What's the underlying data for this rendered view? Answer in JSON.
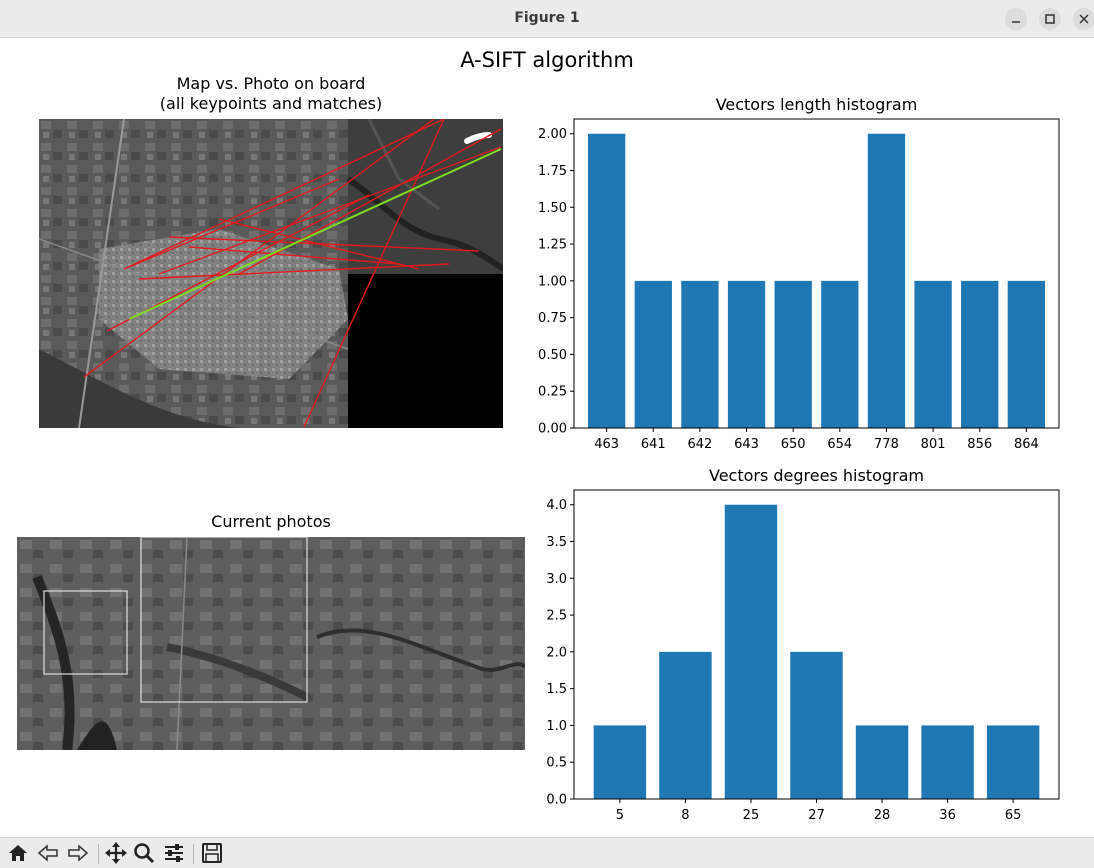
{
  "window": {
    "title": "Figure 1",
    "min_icon": "minimize-icon",
    "max_icon": "maximize-icon",
    "close_icon": "close-icon"
  },
  "figure": {
    "suptitle": "A-SIFT algorithm"
  },
  "panels": {
    "map_title_line1": "Map vs. Photo on board",
    "map_title_line2": "(all keypoints and matches)",
    "current_title": "Current photos"
  },
  "toolbar": {
    "icons": [
      "home-icon",
      "back-icon",
      "forward-icon",
      "pan-icon",
      "zoom-icon",
      "configure-subplots-icon",
      "save-icon"
    ]
  },
  "colors": {
    "bar": "#1f77b4",
    "match_line": "#e31a1c",
    "best_match": "#7ddc1f"
  },
  "chart_data": [
    {
      "type": "bar",
      "title": "Vectors length histogram",
      "categories": [
        "463",
        "641",
        "642",
        "643",
        "650",
        "654",
        "778",
        "801",
        "856",
        "864"
      ],
      "values": [
        2,
        1,
        1,
        1,
        1,
        1,
        2,
        1,
        1,
        1
      ],
      "ylim": [
        0,
        2.1
      ],
      "yticks": [
        "0.00",
        "0.25",
        "0.50",
        "0.75",
        "1.00",
        "1.25",
        "1.50",
        "1.75",
        "2.00"
      ],
      "ytick_values": [
        0,
        0.25,
        0.5,
        0.75,
        1.0,
        1.25,
        1.5,
        1.75,
        2.0
      ]
    },
    {
      "type": "bar",
      "title": "Vectors degrees histogram",
      "categories": [
        "5",
        "8",
        "25",
        "27",
        "28",
        "36",
        "65"
      ],
      "values": [
        1,
        2,
        4,
        2,
        1,
        1,
        1
      ],
      "ylim": [
        0,
        4.2
      ],
      "yticks": [
        "0.0",
        "0.5",
        "1.0",
        "1.5",
        "2.0",
        "2.5",
        "3.0",
        "3.5",
        "4.0"
      ],
      "ytick_values": [
        0,
        0.5,
        1.0,
        1.5,
        2.0,
        2.5,
        3.0,
        3.5,
        4.0
      ]
    }
  ]
}
